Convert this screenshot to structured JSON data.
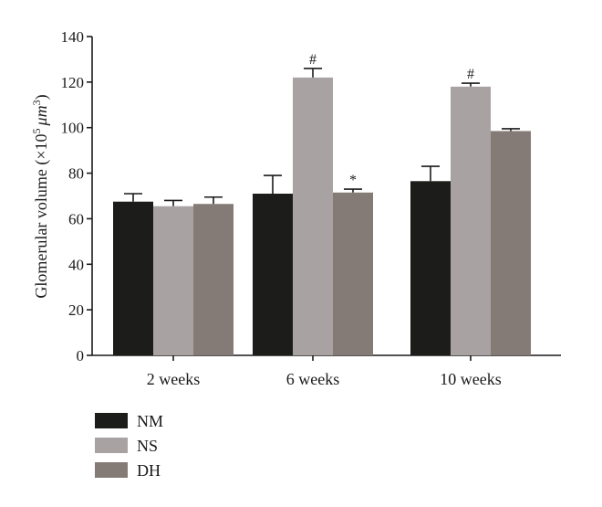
{
  "chart_data": {
    "type": "bar",
    "ylabel_main": "Glomerular volume (×10",
    "ylabel_exp": "5",
    "ylabel_unit": "μm",
    "ylabel_unit_exp": "3",
    "ylabel_close": ")",
    "ylim": [
      0,
      140
    ],
    "yticks": [
      0,
      20,
      40,
      60,
      80,
      100,
      120,
      140
    ],
    "categories": [
      "2 weeks",
      "6 weeks",
      "10 weeks"
    ],
    "series": [
      {
        "name": "NM",
        "color": "#1c1c1a",
        "values": [
          67.5,
          71,
          76.5
        ],
        "errors": [
          3.5,
          8,
          6.5
        ]
      },
      {
        "name": "NS",
        "color": "#a8a3a2",
        "values": [
          65.5,
          122,
          118
        ],
        "errors": [
          2.5,
          4,
          1.5
        ]
      },
      {
        "name": "DH",
        "color": "#857b76",
        "values": [
          66.5,
          71.5,
          98.5
        ],
        "errors": [
          3,
          1.5,
          1
        ]
      }
    ],
    "annotations": [
      {
        "series": 1,
        "category": 1,
        "text": "#"
      },
      {
        "series": 2,
        "category": 1,
        "text": "*"
      },
      {
        "series": 1,
        "category": 2,
        "text": "#"
      }
    ],
    "legend_position": "bottom-left",
    "grid": false
  }
}
